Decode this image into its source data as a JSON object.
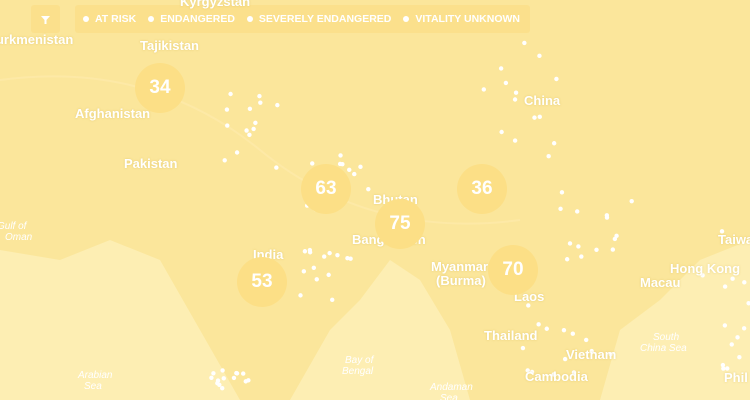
{
  "legend": {
    "items": [
      "AT RISK",
      "ENDANGERED",
      "SEVERELY ENDANGERED",
      "VITALITY UNKNOWN"
    ]
  },
  "clusters": [
    "34",
    "63",
    "36",
    "75",
    "53",
    "70"
  ],
  "places": [
    "Kyrgyzstan",
    "Turkmenistan",
    "Tajikistan",
    "Afghanistan",
    "Pakistan",
    "China",
    "Bhutan",
    "Bangladesh",
    "India",
    "Myanmar",
    "(Burma)",
    "Laos",
    "Thailand",
    "Vietnam",
    "Cambodia",
    "Hong Kong",
    "Macau",
    "Taiwan",
    "Phil"
  ],
  "seas": [
    "Gulf of",
    "Oman",
    "Arabian",
    "Sea",
    "Bay of",
    "Bengal",
    "Andaman",
    "Sea",
    "South",
    "China Sea"
  ]
}
